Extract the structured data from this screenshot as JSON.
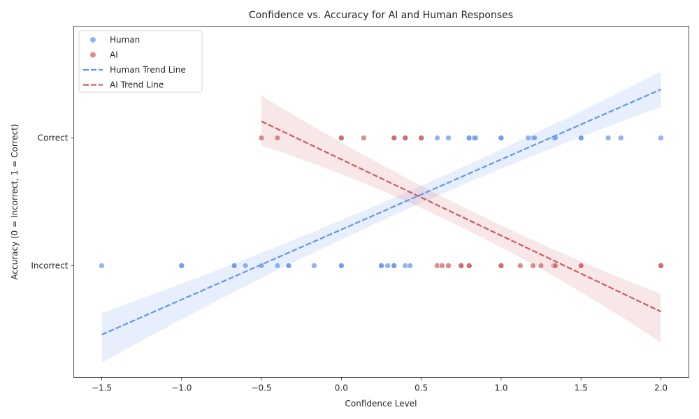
{
  "chart_data": {
    "type": "scatter",
    "title": "Confidence vs. Accuracy for AI and Human Responses",
    "xlabel": "Confidence Level",
    "ylabel": "Accuracy (0 = Incorrect, 1 = Correct)",
    "xlim": [
      -1.675,
      2.175
    ],
    "ylim": [
      -0.875,
      1.875
    ],
    "xticks": [
      -1.5,
      -1.0,
      -0.5,
      0.0,
      0.5,
      1.0,
      1.5,
      2.0
    ],
    "xtick_labels": [
      "−1.5",
      "−1.0",
      "−0.5",
      "0.0",
      "0.5",
      "1.0",
      "1.5",
      "2.0"
    ],
    "yticks": [
      0,
      1
    ],
    "ytick_labels": [
      "Incorrect",
      "Correct"
    ],
    "grid": false,
    "legend_position": "upper-left",
    "legend": [
      "Human",
      "AI",
      "Human Trend Line",
      "AI Trend Line"
    ],
    "series": [
      {
        "name": "Human",
        "kind": "scatter",
        "color": "#6495ED",
        "points": [
          [
            -1.5,
            0
          ],
          [
            -1.0,
            0
          ],
          [
            -1.0,
            0
          ],
          [
            -0.67,
            0
          ],
          [
            -0.67,
            0
          ],
          [
            -0.6,
            0
          ],
          [
            -0.5,
            0
          ],
          [
            -0.4,
            0
          ],
          [
            -0.33,
            0
          ],
          [
            -0.33,
            0
          ],
          [
            -0.17,
            0
          ],
          [
            0.0,
            0
          ],
          [
            0.0,
            0
          ],
          [
            0.25,
            0
          ],
          [
            0.25,
            0
          ],
          [
            0.29,
            0
          ],
          [
            0.33,
            0
          ],
          [
            0.33,
            0
          ],
          [
            0.4,
            0
          ],
          [
            0.43,
            0
          ],
          [
            0.6,
            1
          ],
          [
            0.67,
            1
          ],
          [
            0.8,
            1
          ],
          [
            0.8,
            1
          ],
          [
            0.83,
            1
          ],
          [
            0.84,
            1
          ],
          [
            1.0,
            1
          ],
          [
            1.0,
            1
          ],
          [
            1.17,
            1
          ],
          [
            1.2,
            1
          ],
          [
            1.21,
            1
          ],
          [
            1.33,
            1
          ],
          [
            1.34,
            1
          ],
          [
            1.5,
            1
          ],
          [
            1.5,
            1
          ],
          [
            1.67,
            1
          ],
          [
            1.75,
            1
          ],
          [
            2.0,
            1
          ]
        ]
      },
      {
        "name": "AI",
        "kind": "scatter",
        "color": "#CD5C5C",
        "points": [
          [
            -0.5,
            1
          ],
          [
            -0.4,
            1
          ],
          [
            0.0,
            1
          ],
          [
            0.0,
            1
          ],
          [
            0.14,
            1
          ],
          [
            0.33,
            1
          ],
          [
            0.33,
            1
          ],
          [
            0.4,
            1
          ],
          [
            0.4,
            1
          ],
          [
            0.5,
            1
          ],
          [
            0.5,
            1
          ],
          [
            0.6,
            0
          ],
          [
            0.63,
            0
          ],
          [
            0.67,
            0
          ],
          [
            0.75,
            0
          ],
          [
            0.75,
            0
          ],
          [
            0.8,
            0
          ],
          [
            0.8,
            0
          ],
          [
            1.0,
            0
          ],
          [
            1.0,
            0
          ],
          [
            1.12,
            0
          ],
          [
            1.2,
            0
          ],
          [
            1.25,
            0
          ],
          [
            1.33,
            0
          ],
          [
            1.34,
            0
          ],
          [
            1.5,
            0
          ],
          [
            1.5,
            0
          ],
          [
            2.0,
            0
          ],
          [
            2.0,
            0
          ]
        ]
      },
      {
        "name": "Human Trend Line",
        "kind": "trend",
        "color": "#6495ED",
        "x": [
          -1.5,
          2.0
        ],
        "y": [
          -0.54,
          1.38
        ],
        "ci_lower": [
          -0.76,
          1.24
        ],
        "ci_upper": [
          -0.37,
          1.52
        ],
        "ci_mid": [
          0.5,
          0.445,
          0.62
        ]
      },
      {
        "name": "AI Trend Line",
        "kind": "trend",
        "color": "#CD5C5C",
        "x": [
          -0.5,
          2.0
        ],
        "y": [
          1.13,
          -0.36
        ],
        "ci_lower": [
          0.94,
          -0.6
        ],
        "ci_upper": [
          1.33,
          -0.22
        ],
        "ci_mid": [
          0.5,
          0.445,
          0.62
        ]
      }
    ]
  }
}
